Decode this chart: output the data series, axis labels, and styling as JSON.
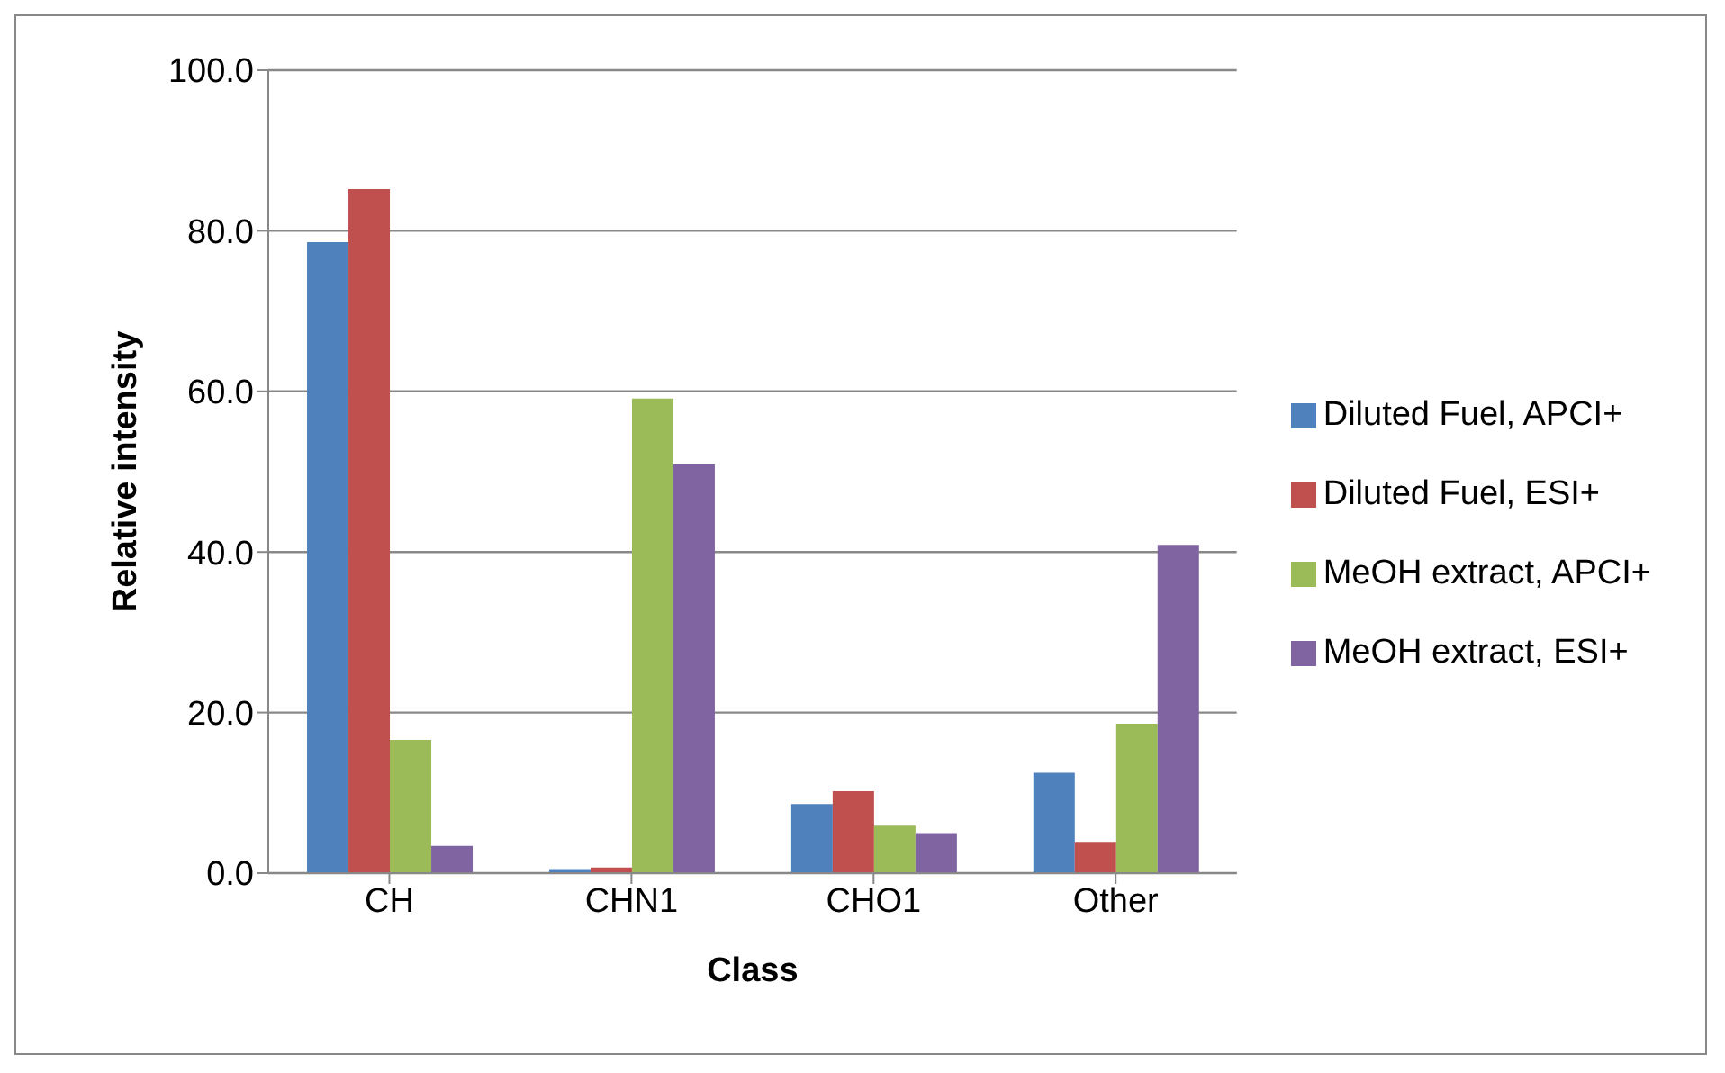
{
  "chart_data": {
    "type": "bar",
    "xlabel": "Class",
    "ylabel": "Relative intensity",
    "categories": [
      "CH",
      "CHN1",
      "CHO1",
      "Other"
    ],
    "series": [
      {
        "name": "Diluted Fuel, APCI+",
        "color": "#4f81bd",
        "values": [
          78.6,
          0.5,
          8.6,
          12.5
        ]
      },
      {
        "name": "Diluted Fuel, ESI+",
        "color": "#c0504d",
        "values": [
          85.2,
          0.7,
          10.2,
          3.9
        ]
      },
      {
        "name": "MeOH extract, APCI+",
        "color": "#9bbb59",
        "values": [
          16.6,
          59.1,
          5.9,
          18.6
        ]
      },
      {
        "name": "MeOH extract, ESI+",
        "color": "#8064a2",
        "values": [
          3.4,
          50.9,
          5.0,
          40.9
        ]
      }
    ],
    "ylim": [
      0,
      100
    ],
    "yticks": [
      {
        "value": 0,
        "label": "0.0"
      },
      {
        "value": 20,
        "label": "20.0"
      },
      {
        "value": 40,
        "label": "40.0"
      },
      {
        "value": 60,
        "label": "60.0"
      },
      {
        "value": 80,
        "label": "80.0"
      },
      {
        "value": 100,
        "label": "100.0"
      }
    ],
    "grid": "y",
    "legend": "right"
  }
}
